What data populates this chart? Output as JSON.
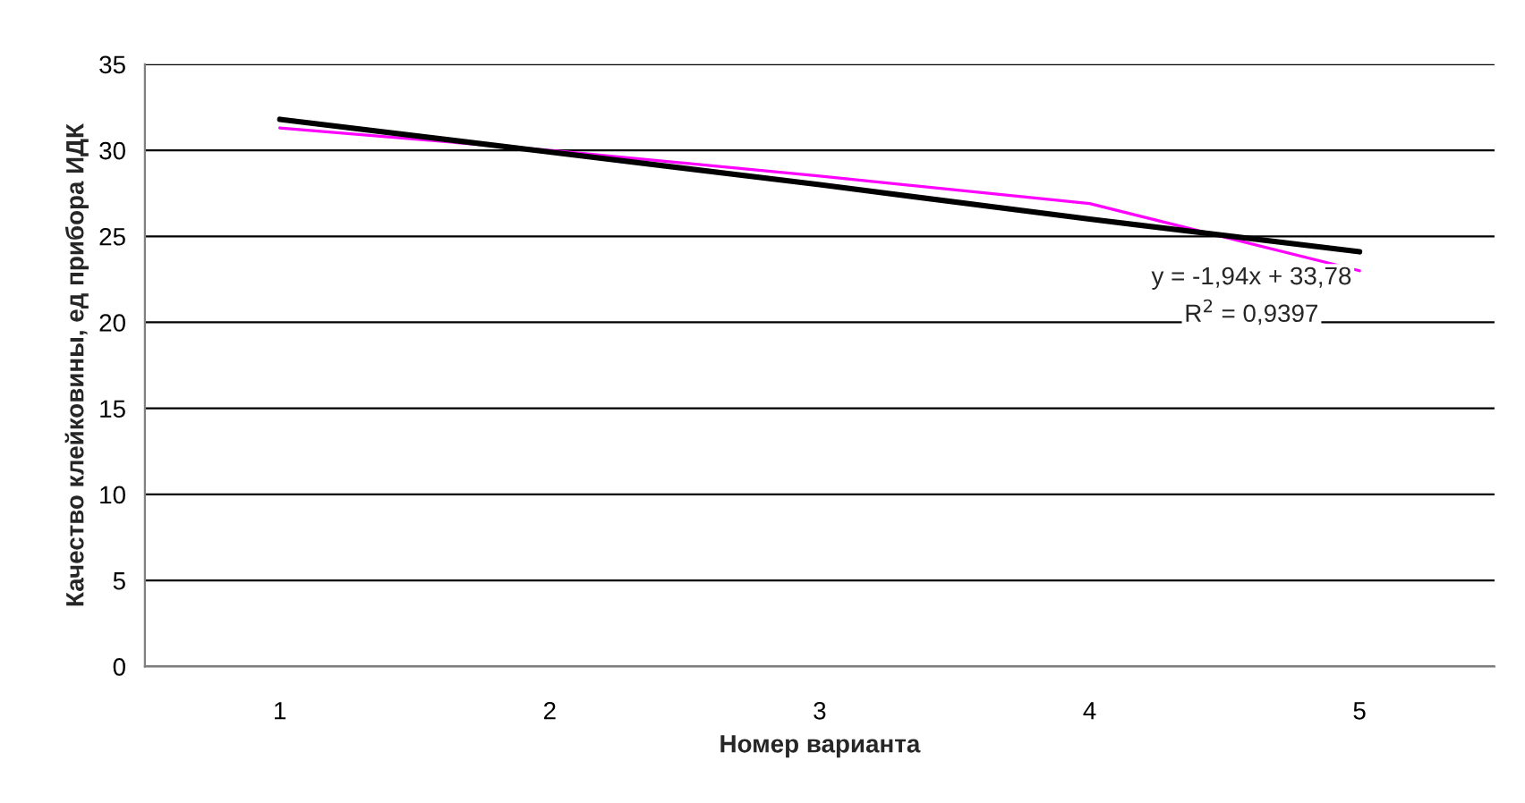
{
  "chart_data": {
    "type": "line",
    "xlabel": "Номер варианта",
    "ylabel": "Качество клейковины, ед прибора ИДК",
    "categories": [
      "1",
      "2",
      "3",
      "4",
      "5"
    ],
    "series": [
      {
        "color": "#ff00ff",
        "values": [
          31.3,
          30.0,
          28.5,
          26.9,
          23.0
        ]
      },
      {
        "color": "#000000",
        "values": [
          31.8,
          29.9,
          28.0,
          26.0,
          24.1
        ]
      }
    ],
    "ylim": [
      0,
      35
    ],
    "yticks": [
      0,
      5,
      10,
      15,
      20,
      25,
      30,
      35
    ],
    "grid": "y",
    "legend": false,
    "annotations": [
      "y = -1,94x + 33,78",
      "R$^{2}$ = 0,9397"
    ]
  }
}
